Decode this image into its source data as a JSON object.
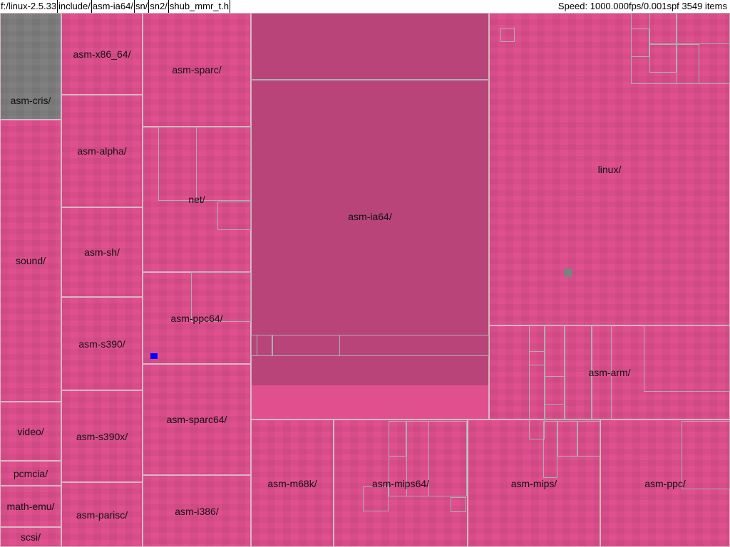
{
  "topbar": {
    "path": [
      "f:/linux-2.5.33",
      "include/",
      "asm-ia64/",
      "sn/",
      "sn2/",
      "shub_mmr_t.h"
    ],
    "status": "Speed: 1000.000fps/0.001spf 3549 items"
  },
  "colors": {
    "base": "#e0508f",
    "selected": "#b8447a",
    "highlight_gray": "#808080",
    "marker_blue": "#0000ff",
    "border": "#d7b8c6"
  },
  "treemap": [
    {
      "label": "asm-cris/"
    },
    {
      "label": "sound/"
    },
    {
      "label": "video/"
    },
    {
      "label": "pcmcia/"
    },
    {
      "label": "math-emu/"
    },
    {
      "label": "scsi/"
    },
    {
      "label": "asm-x86_64/"
    },
    {
      "label": "asm-alpha/"
    },
    {
      "label": "asm-sh/"
    },
    {
      "label": "asm-s390/"
    },
    {
      "label": "asm-s390x/"
    },
    {
      "label": "asm-parisc/"
    },
    {
      "label": "asm-sparc/"
    },
    {
      "label": "net/"
    },
    {
      "label": "asm-ppc64/"
    },
    {
      "label": "asm-sparc64/"
    },
    {
      "label": "asm-i386/"
    },
    {
      "label": "asm-ia64/"
    },
    {
      "label": "linux/"
    },
    {
      "label": "asm-arm/"
    },
    {
      "label": "asm-m68k/"
    },
    {
      "label": "asm-mips64/"
    },
    {
      "label": "asm-mips/"
    },
    {
      "label": "asm-ppc/"
    }
  ]
}
